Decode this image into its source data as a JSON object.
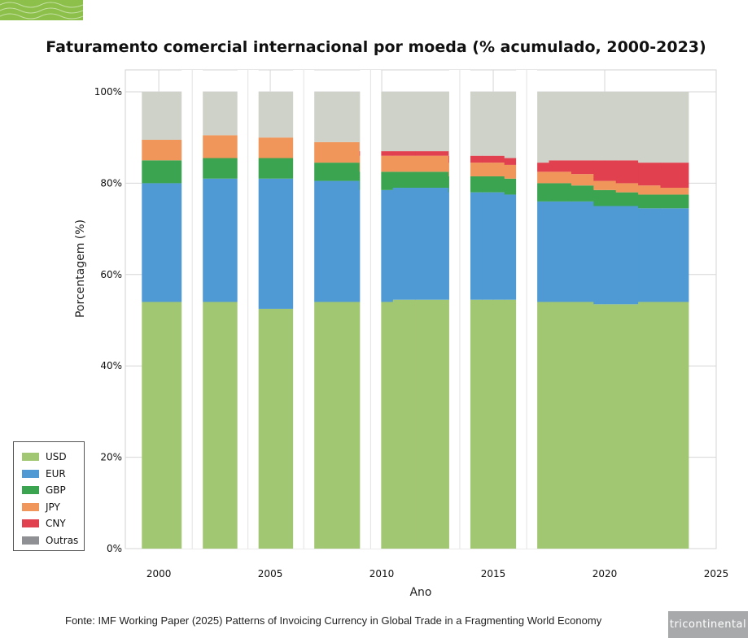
{
  "title": "Faturamento comercial internacional por moeda (% acumulado, 2000-2023)",
  "source": "Fonte: IMF Working Paper (2025) Patterns of Invoicing Currency in Global Trade in a Fragmenting World Economy",
  "brand": "tricontinental",
  "colors": {
    "USD": "#a2c773",
    "EUR": "#4f9ad4",
    "GBP": "#3aa451",
    "JPY": "#f0965a",
    "CNY": "#e1404e",
    "Outras": "#cfd2c8",
    "corner": "#8cc04a"
  },
  "chart_data": {
    "type": "bar",
    "stacked": true,
    "xlabel": "Ano",
    "ylabel": "Porcentagem (%)",
    "xlim": [
      1998.5,
      2025
    ],
    "ylim": [
      0,
      100
    ],
    "x_ticks": [
      2000,
      2005,
      2010,
      2015,
      2020,
      2025
    ],
    "y_ticks": [
      "0%",
      "20%",
      "40%",
      "60%",
      "80%",
      "100%"
    ],
    "y_tick_values": [
      0,
      20,
      40,
      60,
      80,
      100
    ],
    "grid": true,
    "legend_position": "bottom-left",
    "categories": [
      2000,
      2003,
      2005,
      2008,
      2010,
      2011,
      2012,
      2014,
      2015,
      2016,
      2017,
      2018,
      2019,
      2020,
      2021,
      2022,
      2023
    ],
    "series": [
      {
        "name": "USD",
        "values": [
          54.0,
          54.0,
          52.5,
          54.0,
          54.0,
          54.5,
          54.5,
          54.5,
          54.5,
          54.5,
          54.0,
          54.0,
          54.0,
          53.5,
          53.5,
          54.0,
          54.0
        ]
      },
      {
        "name": "EUR",
        "values": [
          26.0,
          27.0,
          28.5,
          26.5,
          24.5,
          24.5,
          24.5,
          23.5,
          23.5,
          23.0,
          22.0,
          22.0,
          22.0,
          21.5,
          21.5,
          20.5,
          20.5
        ]
      },
      {
        "name": "GBP",
        "values": [
          5.0,
          4.5,
          4.5,
          4.0,
          4.0,
          3.5,
          3.5,
          3.5,
          3.5,
          3.5,
          4.0,
          4.0,
          3.5,
          3.5,
          3.0,
          3.0,
          3.0
        ]
      },
      {
        "name": "JPY",
        "values": [
          4.5,
          5.0,
          4.5,
          4.5,
          3.5,
          3.5,
          3.5,
          3.0,
          3.0,
          3.0,
          2.5,
          2.5,
          2.5,
          2.0,
          2.0,
          2.0,
          1.5
        ]
      },
      {
        "name": "CNY",
        "values": [
          0.0,
          0.0,
          0.0,
          0.0,
          1.0,
          1.0,
          1.0,
          1.5,
          1.5,
          1.5,
          2.0,
          2.5,
          3.0,
          4.5,
          5.0,
          5.0,
          5.5
        ]
      },
      {
        "name": "Outras",
        "values": [
          10.5,
          9.5,
          10.0,
          11.0,
          13.0,
          13.0,
          13.0,
          14.0,
          14.0,
          14.5,
          15.5,
          15.0,
          15.0,
          15.0,
          15.0,
          15.5,
          15.5
        ]
      }
    ]
  }
}
